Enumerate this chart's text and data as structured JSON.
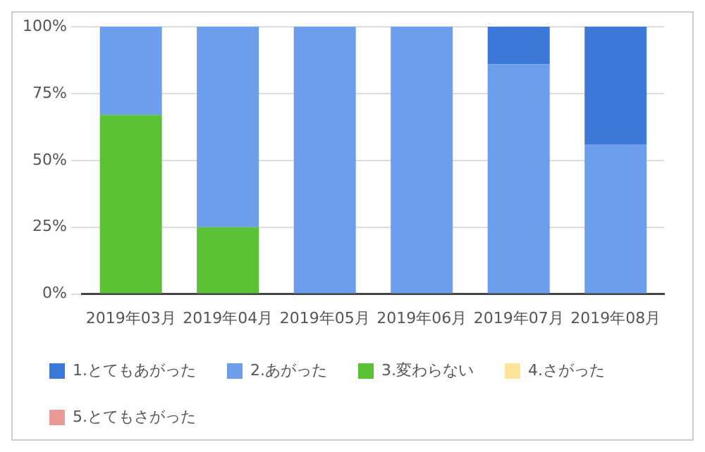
{
  "chart_data": {
    "type": "bar",
    "stacked": true,
    "categories": [
      "2019年03月",
      "2019年04月",
      "2019年05月",
      "2019年06月",
      "2019年07月",
      "2019年08月"
    ],
    "series": [
      {
        "name": "5.とてもさがった",
        "color": "#ea9999",
        "values": [
          0,
          0,
          0,
          0,
          0,
          0
        ]
      },
      {
        "name": "4.さがった",
        "color": "#ffe599",
        "values": [
          0,
          0,
          0,
          0,
          0,
          0
        ]
      },
      {
        "name": "3.変わらない",
        "color": "#5bc236",
        "values": [
          67,
          25,
          0,
          0,
          0,
          0
        ]
      },
      {
        "name": "2.あがった",
        "color": "#6d9eeb",
        "values": [
          33,
          75,
          100,
          100,
          86,
          56
        ]
      },
      {
        "name": "1.とてもあがった",
        "color": "#3b78d8",
        "values": [
          0,
          0,
          0,
          0,
          14,
          44
        ]
      }
    ],
    "ylim": [
      0,
      100
    ],
    "yticks": [
      {
        "value": 0,
        "label": "0%"
      },
      {
        "value": 25,
        "label": "25%"
      },
      {
        "value": 50,
        "label": "50%"
      },
      {
        "value": 75,
        "label": "75%"
      },
      {
        "value": 100,
        "label": "100%"
      }
    ],
    "grid": "y",
    "legend": "bottom"
  }
}
